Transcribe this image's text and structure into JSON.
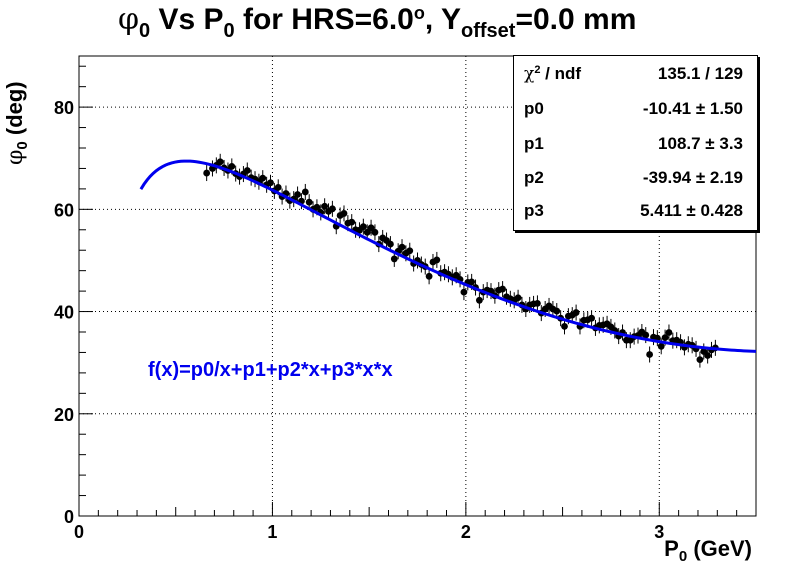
{
  "title": {
    "phi": "φ",
    "phi_sub": "0",
    "part1": " Vs P",
    "p_sub": "0",
    "part2": " for HRS=6.0",
    "deg": "o",
    "part3": ", Y",
    "y_sub": "offset",
    "part4": "=0.0 mm"
  },
  "ylabel": {
    "phi": "φ",
    "sub": "0",
    "rest": " (deg)"
  },
  "xlabel": {
    "p": "P",
    "sub": "0",
    "rest": " (GeV)"
  },
  "stats_box": {
    "rows": [
      {
        "key_sym": "χ",
        "key_sup": "2",
        "key_rest": " / ndf",
        "value": "135.1 / 129"
      },
      {
        "key": "p0",
        "value": "-10.41 ± 1.50"
      },
      {
        "key": "p1",
        "value": "108.7 ± 3.3"
      },
      {
        "key": "p2",
        "value": "-39.94 ± 2.19"
      },
      {
        "key": "p3",
        "value": "5.411 ± 0.428"
      }
    ]
  },
  "fit_label": "f(x)=p0/x+p1+p2*x+p3*x*x",
  "colors": {
    "fit": "#0000ee",
    "points": "#000000",
    "axis": "#000000",
    "grid": "#000000"
  },
  "chart_data": {
    "type": "scatter",
    "xlim": [
      0,
      3.5
    ],
    "ylim": [
      0,
      90
    ],
    "x_ticks": [
      "0",
      "1",
      "2",
      "3"
    ],
    "y_ticks": [
      "0",
      "20",
      "40",
      "60",
      "80"
    ],
    "grid": true,
    "series": [
      {
        "kind": "points_with_error_bars",
        "points": [
          [
            0.66,
            67.1
          ],
          [
            0.69,
            68.0
          ],
          [
            0.71,
            68.6
          ],
          [
            0.73,
            69.3
          ],
          [
            0.75,
            68.1
          ],
          [
            0.77,
            67.6
          ],
          [
            0.79,
            68.4
          ],
          [
            0.81,
            67.0
          ],
          [
            0.83,
            66.4
          ],
          [
            0.85,
            66.9
          ],
          [
            0.87,
            67.6
          ],
          [
            0.89,
            66.2
          ],
          [
            0.91,
            65.9
          ],
          [
            0.93,
            65.4
          ],
          [
            0.95,
            66.1
          ],
          [
            0.97,
            64.8
          ],
          [
            0.99,
            65.2
          ],
          [
            1.01,
            63.6
          ],
          [
            1.03,
            64.3
          ],
          [
            1.05,
            62.5
          ],
          [
            1.07,
            63.1
          ],
          [
            1.09,
            61.7
          ],
          [
            1.11,
            62.0
          ],
          [
            1.13,
            62.9
          ],
          [
            1.15,
            61.6
          ],
          [
            1.17,
            63.4
          ],
          [
            1.19,
            61.4
          ],
          [
            1.21,
            60.0
          ],
          [
            1.23,
            60.4
          ],
          [
            1.25,
            59.4
          ],
          [
            1.27,
            60.6
          ],
          [
            1.29,
            59.6
          ],
          [
            1.31,
            60.1
          ],
          [
            1.33,
            56.7
          ],
          [
            1.35,
            58.8
          ],
          [
            1.37,
            59.2
          ],
          [
            1.39,
            57.3
          ],
          [
            1.41,
            57.5
          ],
          [
            1.43,
            56.0
          ],
          [
            1.45,
            55.9
          ],
          [
            1.47,
            56.6
          ],
          [
            1.49,
            55.5
          ],
          [
            1.51,
            56.4
          ],
          [
            1.53,
            55.5
          ],
          [
            1.55,
            53.2
          ],
          [
            1.57,
            54.4
          ],
          [
            1.59,
            53.9
          ],
          [
            1.61,
            53.2
          ],
          [
            1.63,
            50.3
          ],
          [
            1.65,
            51.8
          ],
          [
            1.67,
            52.6
          ],
          [
            1.69,
            51.4
          ],
          [
            1.71,
            51.9
          ],
          [
            1.73,
            49.4
          ],
          [
            1.75,
            50.0
          ],
          [
            1.77,
            49.2
          ],
          [
            1.79,
            48.8
          ],
          [
            1.81,
            46.9
          ],
          [
            1.83,
            49.7
          ],
          [
            1.85,
            50.1
          ],
          [
            1.87,
            47.5
          ],
          [
            1.89,
            47.7
          ],
          [
            1.91,
            47.3
          ],
          [
            1.93,
            46.7
          ],
          [
            1.95,
            47.1
          ],
          [
            1.97,
            46.3
          ],
          [
            1.99,
            43.8
          ],
          [
            2.01,
            45.7
          ],
          [
            2.03,
            45.8
          ],
          [
            2.05,
            44.7
          ],
          [
            2.07,
            42.2
          ],
          [
            2.09,
            43.8
          ],
          [
            2.11,
            44.2
          ],
          [
            2.13,
            44.0
          ],
          [
            2.15,
            43.1
          ],
          [
            2.17,
            44.2
          ],
          [
            2.19,
            44.4
          ],
          [
            2.21,
            42.9
          ],
          [
            2.23,
            42.5
          ],
          [
            2.25,
            42.2
          ],
          [
            2.27,
            42.7
          ],
          [
            2.29,
            41.3
          ],
          [
            2.31,
            40.5
          ],
          [
            2.33,
            41.3
          ],
          [
            2.35,
            41.5
          ],
          [
            2.37,
            41.6
          ],
          [
            2.39,
            39.7
          ],
          [
            2.41,
            40.5
          ],
          [
            2.43,
            41.1
          ],
          [
            2.45,
            40.5
          ],
          [
            2.47,
            40.1
          ],
          [
            2.49,
            38.7
          ],
          [
            2.51,
            37.1
          ],
          [
            2.53,
            39.1
          ],
          [
            2.55,
            39.3
          ],
          [
            2.57,
            39.8
          ],
          [
            2.59,
            37.1
          ],
          [
            2.61,
            38.3
          ],
          [
            2.63,
            38.4
          ],
          [
            2.65,
            38.7
          ],
          [
            2.67,
            36.8
          ],
          [
            2.69,
            37.3
          ],
          [
            2.71,
            37.4
          ],
          [
            2.73,
            37.6
          ],
          [
            2.75,
            37.0
          ],
          [
            2.77,
            36.3
          ],
          [
            2.79,
            35.2
          ],
          [
            2.81,
            35.9
          ],
          [
            2.83,
            34.4
          ],
          [
            2.85,
            34.4
          ],
          [
            2.87,
            35.1
          ],
          [
            2.89,
            35.3
          ],
          [
            2.91,
            36.0
          ],
          [
            2.93,
            35.4
          ],
          [
            2.95,
            31.6
          ],
          [
            2.97,
            35.0
          ],
          [
            2.99,
            34.8
          ],
          [
            3.01,
            33.2
          ],
          [
            3.03,
            34.9
          ],
          [
            3.05,
            35.9
          ],
          [
            3.07,
            34.3
          ],
          [
            3.09,
            34.4
          ],
          [
            3.11,
            34.0
          ],
          [
            3.13,
            33.0
          ],
          [
            3.15,
            33.6
          ],
          [
            3.17,
            33.4
          ],
          [
            3.19,
            32.7
          ],
          [
            3.21,
            30.6
          ],
          [
            3.23,
            32.2
          ],
          [
            3.25,
            31.4
          ],
          [
            3.27,
            32.5
          ],
          [
            3.29,
            32.9
          ]
        ]
      },
      {
        "kind": "fit_curve",
        "name": "f(x)=p0/x+p1+p2*x+p3*x*x",
        "function": "p0/x+p1+p2*x+p3*x*x",
        "params": {
          "p0": -10.41,
          "p1": 108.7,
          "p2": -39.94,
          "p3": 5.411
        },
        "x_range": [
          0.32,
          3.5
        ]
      }
    ]
  }
}
